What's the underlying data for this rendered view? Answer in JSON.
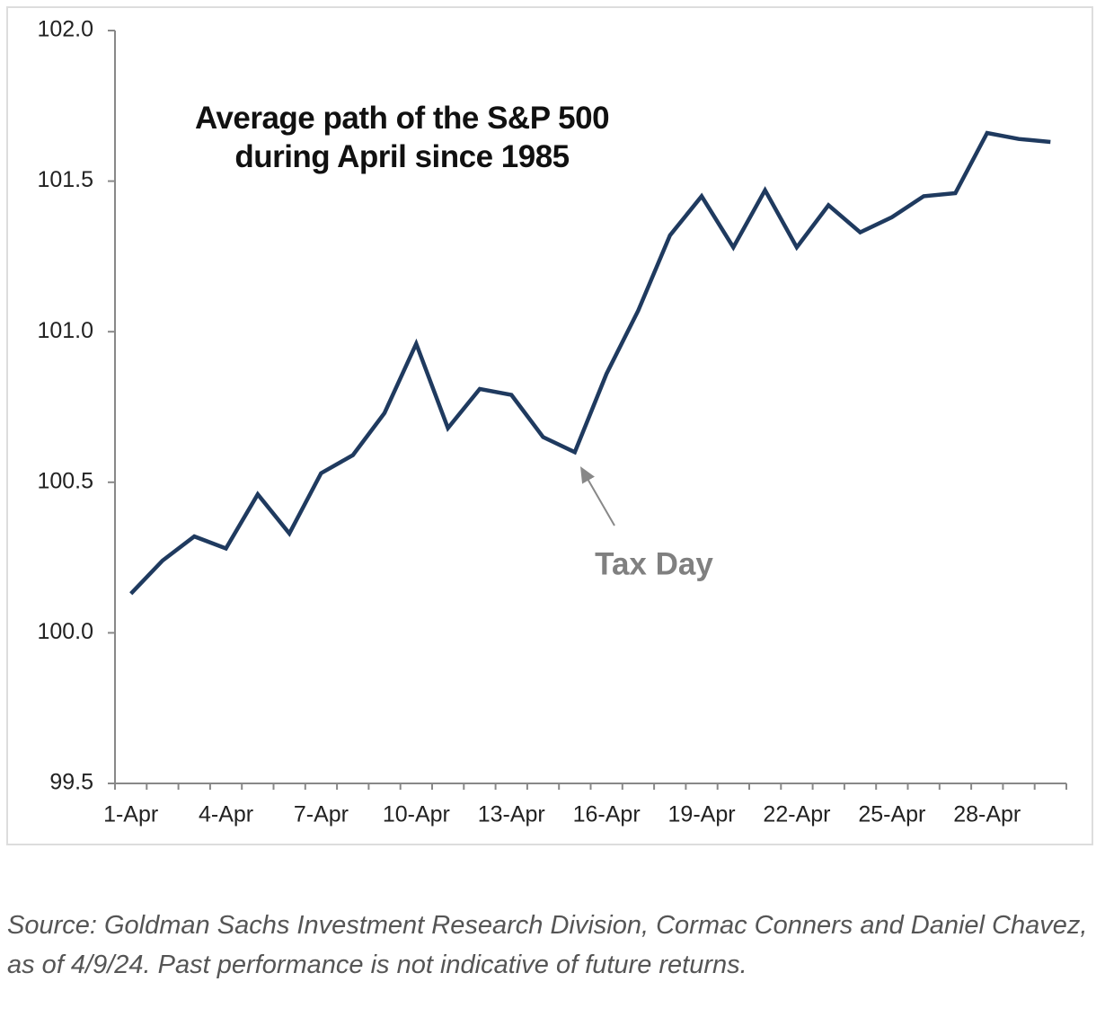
{
  "chart_data": {
    "type": "line",
    "title": "Average path of the S&P 500 during April since 1985",
    "categories": [
      "1-Apr",
      null,
      null,
      "4-Apr",
      null,
      null,
      "7-Apr",
      null,
      null,
      "10-Apr",
      null,
      null,
      "13-Apr",
      null,
      null,
      "16-Apr",
      null,
      null,
      "19-Apr",
      null,
      null,
      "22-Apr",
      null,
      null,
      "25-Apr",
      null,
      null,
      "28-Apr",
      null,
      null
    ],
    "series": [
      {
        "name": "S&P 500",
        "color": "#1f3a5f",
        "values": [
          100.13,
          100.24,
          100.32,
          100.28,
          100.46,
          100.33,
          100.53,
          100.59,
          100.73,
          100.96,
          100.68,
          100.81,
          100.79,
          100.65,
          100.6,
          100.86,
          101.07,
          101.32,
          101.45,
          101.28,
          101.47,
          101.28,
          101.42,
          101.33,
          101.38,
          101.45,
          101.46,
          101.66,
          101.64,
          101.63
        ]
      }
    ],
    "ylim": [
      99.5,
      102
    ],
    "yticks": [
      {
        "value": 102,
        "label": "102.0"
      },
      101.5,
      {
        "value": 101,
        "label": "101.0"
      },
      100.5,
      {
        "value": 100,
        "label": "100.0"
      },
      99.5
    ],
    "grid": false,
    "annotations": [
      {
        "text": "Tax Day"
      }
    ]
  },
  "source": "Source: Goldman Sachs Investment Research Division, Cormac Conners and Daniel Chavez, as of 4/9/24. Past performance is not indicative of future returns."
}
